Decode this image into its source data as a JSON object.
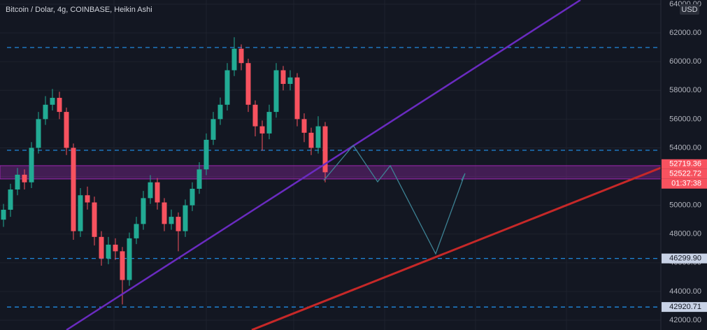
{
  "chart_data": {
    "type": "candlestick",
    "title": "Bitcoin / Dolar, 4g, COINBASE, Heikin Ashi",
    "currency": "USD",
    "open": [
      49000,
      49690,
      51100,
      52130,
      51600,
      54000,
      56000,
      57000,
      57480,
      56500,
      54000,
      48200,
      50700,
      50200,
      47800,
      46300,
      47260,
      46800,
      44800,
      47700,
      48700,
      50500,
      51600,
      50200,
      48700,
      49200,
      48200,
      50000,
      51150,
      52500,
      54560,
      56000,
      57000,
      59400,
      60900,
      59900,
      57000,
      55500,
      55000,
      56500,
      59400,
      58450,
      58900,
      56000,
      55050,
      54000,
      55500
    ],
    "high": [
      50100,
      51500,
      52600,
      52500,
      54400,
      56500,
      57600,
      58100,
      57900,
      56800,
      54300,
      51200,
      51300,
      50600,
      48200,
      47800,
      47700,
      47100,
      48100,
      49200,
      51000,
      52100,
      51900,
      50500,
      49700,
      49500,
      50400,
      51600,
      53000,
      55000,
      56500,
      57500,
      59900,
      61700,
      61200,
      60200,
      57300,
      55900,
      57000,
      59900,
      59700,
      59400,
      59200,
      56400,
      55400,
      56200,
      55800
    ],
    "low": [
      48500,
      49200,
      50700,
      51100,
      51200,
      53600,
      55600,
      56600,
      56000,
      53500,
      47600,
      47800,
      49700,
      47200,
      45800,
      45900,
      46200,
      43100,
      44400,
      47300,
      48300,
      50100,
      49700,
      48200,
      48300,
      46800,
      47800,
      49600,
      50800,
      52100,
      54200,
      55600,
      56600,
      59000,
      59400,
      56500,
      54800,
      53800,
      54600,
      56100,
      58000,
      58000,
      55500,
      54400,
      53500,
      53600,
      51600
    ],
    "close": [
      49690,
      51100,
      52130,
      51600,
      54000,
      56000,
      57000,
      57480,
      56500,
      54000,
      48200,
      50700,
      50200,
      47800,
      46300,
      47260,
      46800,
      44800,
      47700,
      48700,
      50500,
      51600,
      50200,
      48700,
      49200,
      48200,
      50000,
      51150,
      52500,
      54560,
      56000,
      57000,
      59400,
      60900,
      59900,
      57000,
      55500,
      55000,
      56500,
      59400,
      58450,
      58900,
      56000,
      55050,
      54000,
      55500,
      52300
    ],
    "up_color": "#22ab94",
    "down_color": "#f7525f",
    "ylim": [
      41320,
      64290
    ],
    "yticks": [
      {
        "value": 42000,
        "label": "42000.00"
      },
      {
        "value": 44000,
        "label": "44000.00"
      },
      {
        "value": 46000,
        "label": "46000.00"
      },
      {
        "value": 48000,
        "label": "48000.00"
      },
      {
        "value": 50000,
        "label": "50000.00"
      },
      {
        "value": 52000,
        "label": "52000.00"
      },
      {
        "value": 54000,
        "label": "54000.00"
      },
      {
        "value": 56000,
        "label": "56000.00"
      },
      {
        "value": 58000,
        "label": "58000.00"
      },
      {
        "value": 60000,
        "label": "60000.00"
      },
      {
        "value": 62000,
        "label": "62000.00"
      },
      {
        "value": 64000,
        "label": "64000.00"
      }
    ],
    "levels": [
      60983,
      53830,
      {
        "value": 46299.9,
        "label": "46299.90"
      },
      42920.71
    ],
    "level_color": "#2196f3",
    "zone": [
      51835,
      52759
    ],
    "price_tags": [
      52719.36,
      52522.72
    ],
    "countdown": "01:37:38"
  }
}
